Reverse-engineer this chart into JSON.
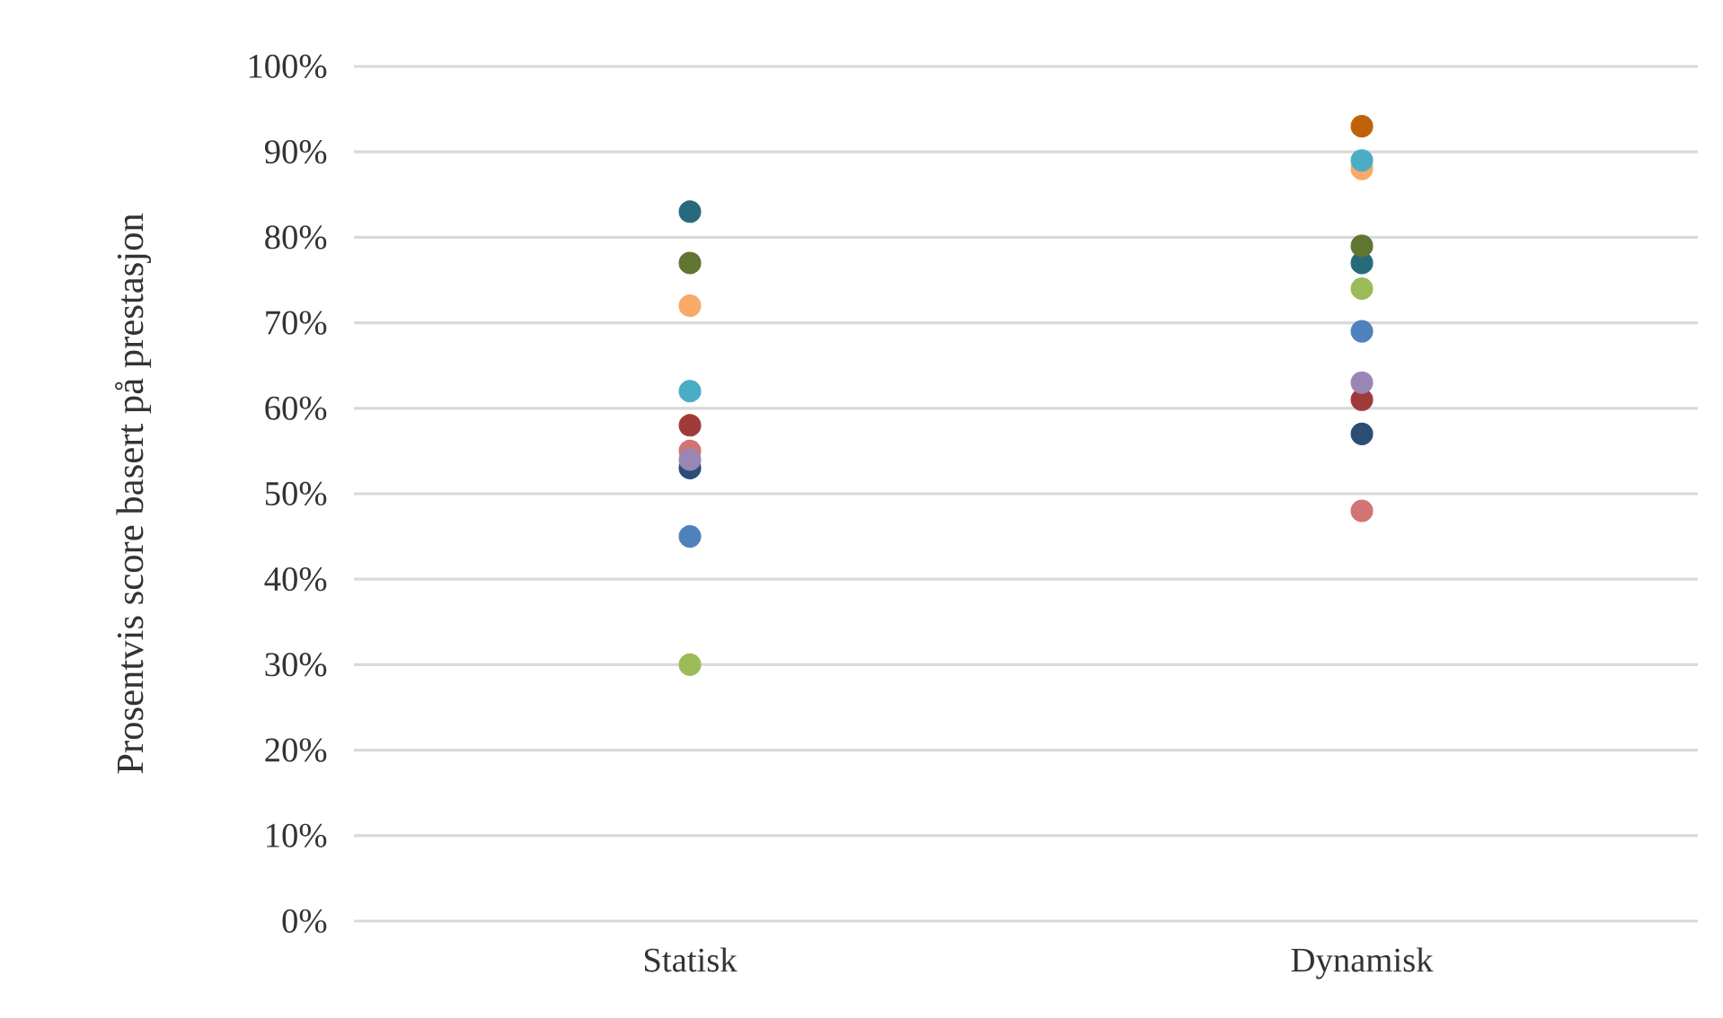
{
  "chart_data": {
    "type": "scatter",
    "ylabel": "Prosentvis score basert på prestasjon",
    "categories": [
      "Statisk",
      "Dynamisk"
    ],
    "series": [
      {
        "color": "#276a7c",
        "values": [
          83,
          77
        ]
      },
      {
        "color": "#5f7530",
        "values": [
          77,
          79
        ]
      },
      {
        "color": "#f9a968",
        "values": [
          72,
          88
        ]
      },
      {
        "color": "#4bacc6",
        "values": [
          62,
          89
        ]
      },
      {
        "color": "#9e3b39",
        "values": [
          58,
          61
        ]
      },
      {
        "color": "#d07474",
        "values": [
          55,
          48
        ]
      },
      {
        "color": "#2c4d75",
        "values": [
          53,
          57
        ]
      },
      {
        "color": "#9a86b5",
        "values": [
          54,
          63
        ]
      },
      {
        "color": "#4f81bd",
        "values": [
          45,
          69
        ]
      },
      {
        "color": "#9bbb59",
        "values": [
          30,
          74
        ]
      },
      {
        "color": "#c0620b",
        "values": [
          null,
          93
        ]
      }
    ],
    "ylim": [
      0,
      100
    ],
    "yticks": [
      {
        "value": 0,
        "label": "0%"
      },
      {
        "value": 10,
        "label": "10%"
      },
      {
        "value": 20,
        "label": "20%"
      },
      {
        "value": 30,
        "label": "30%"
      },
      {
        "value": 40,
        "label": "40%"
      },
      {
        "value": 50,
        "label": "50%"
      },
      {
        "value": 60,
        "label": "60%"
      },
      {
        "value": 70,
        "label": "70%"
      },
      {
        "value": 80,
        "label": "80%"
      },
      {
        "value": 90,
        "label": "90%"
      },
      {
        "value": 100,
        "label": "100%"
      }
    ],
    "grid": "y"
  }
}
